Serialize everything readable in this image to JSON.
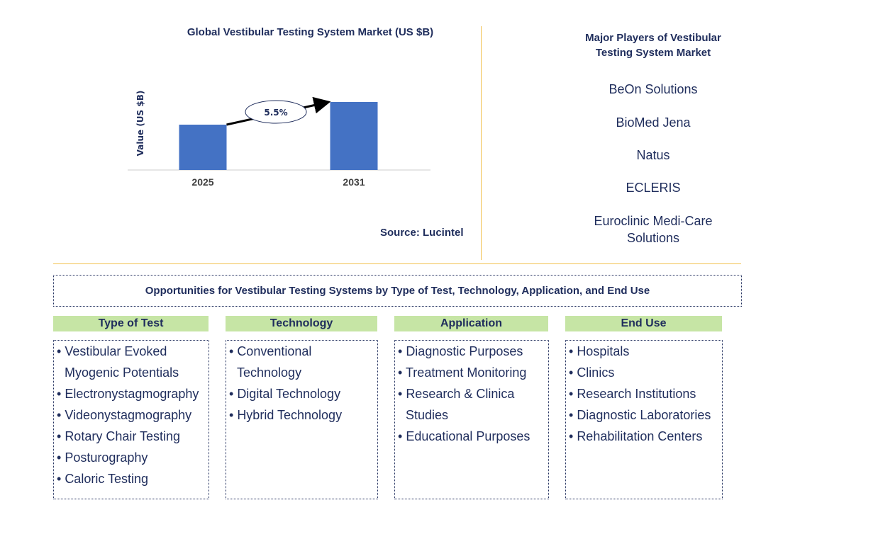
{
  "chart_data": {
    "type": "bar",
    "title": "Global Vestibular Testing System Market (US $B)",
    "ylabel": "Value (US $B)",
    "xlabel": "",
    "categories": [
      "2025",
      "2031"
    ],
    "values": [
      1.0,
      1.5
    ],
    "ylim": [
      0,
      1.5
    ],
    "annotation": "5.5%",
    "bar_color": "#4472c4"
  },
  "source": "Source: Lucintel",
  "players": {
    "title_line1": "Major Players of Vestibular",
    "title_line2": "Testing System Market",
    "names": [
      "BeOn Solutions",
      "BioMed Jena",
      "Natus",
      "ECLERIS"
    ],
    "last_line1": "Euroclinic Medi-Care",
    "last_line2": "Solutions"
  },
  "opportunities_title": "Opportunities for Vestibular Testing Systems by Type of Test, Technology, Application, and End Use",
  "columns": [
    {
      "header": "Type of Test",
      "items": [
        "Vestibular Evoked Myogenic Potentials",
        "Electronystagmography",
        "Videonystagmography",
        "Rotary Chair Testing",
        "Posturography",
        "Caloric Testing"
      ]
    },
    {
      "header": "Technology",
      "items": [
        "Conventional Technology",
        "Digital Technology",
        "Hybrid Technology"
      ]
    },
    {
      "header": "Application",
      "items": [
        "Diagnostic Purposes",
        "Treatment Monitoring",
        "Research & Clinica Studies",
        "Educational Purposes"
      ]
    },
    {
      "header": "End Use",
      "items": [
        "Hospitals",
        "Clinics",
        "Research Institutions",
        "Diagnostic Laboratories",
        "Rehabilitation Centers"
      ]
    }
  ],
  "colors": {
    "header_bg": "#c6e5a5",
    "text": "#1f2d5c",
    "divider": "#f2c14e"
  }
}
